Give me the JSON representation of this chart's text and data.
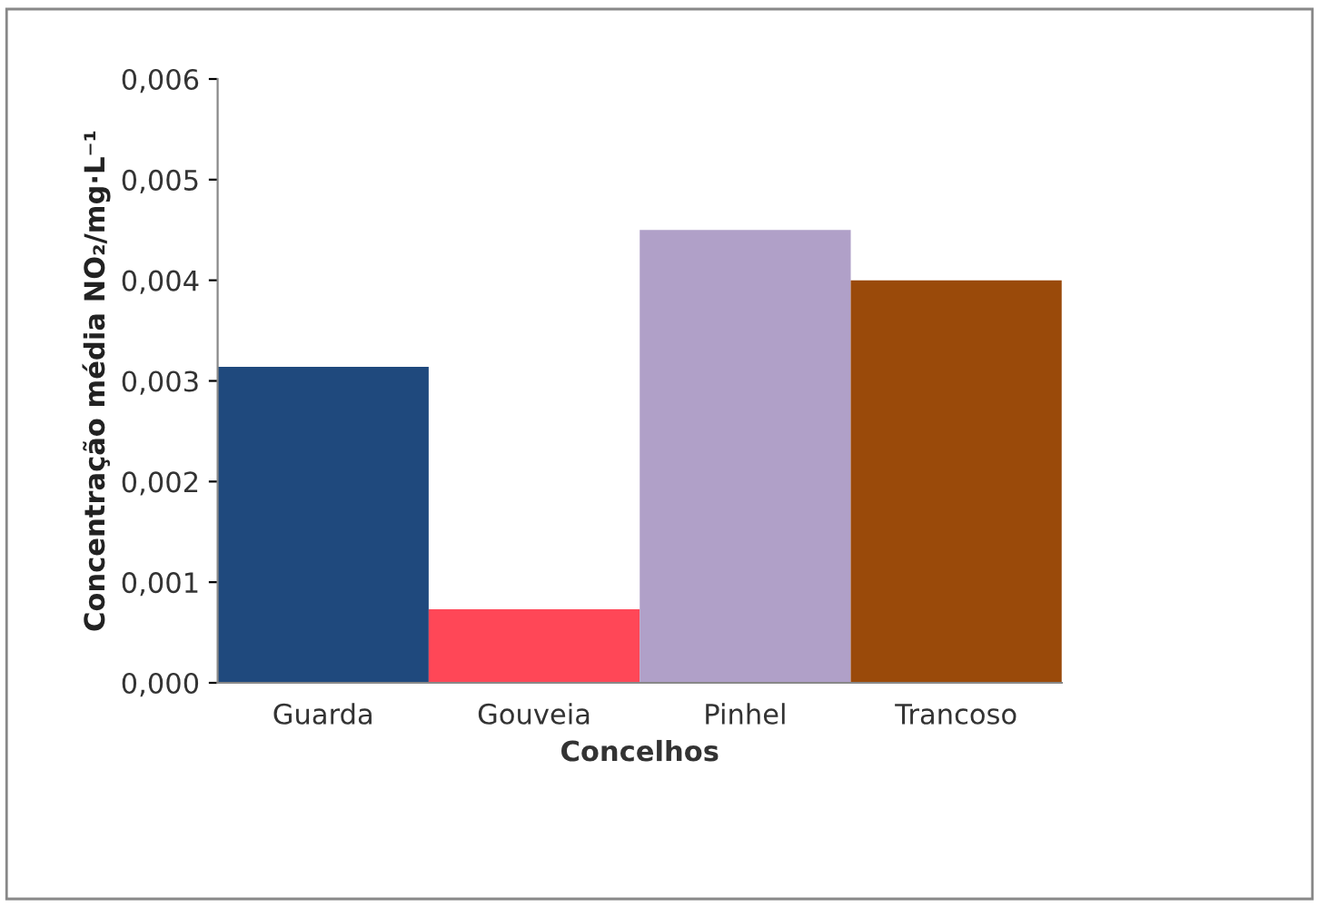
{
  "chart_data": {
    "type": "bar",
    "xlabel": "Concelhos",
    "ylabel": "Concentração média NO₂/mg·L⁻¹",
    "categories": [
      "Guarda",
      "Gouveia",
      "Pinhel",
      "Trancoso"
    ],
    "values": [
      0.00314,
      0.00073,
      0.0045,
      0.004
    ],
    "colors": [
      "#1f497d",
      "#ff4757",
      "#b0a0c8",
      "#9a4a0a"
    ],
    "ylim": [
      0,
      0.006
    ],
    "yticks": [
      {
        "value": 0,
        "label": "0,000"
      },
      {
        "value": 0.001,
        "label": "0,001"
      },
      {
        "value": 0.002,
        "label": "0,002"
      },
      {
        "value": 0.003,
        "label": "0,003"
      },
      {
        "value": 0.004,
        "label": "0,004"
      },
      {
        "value": 0.005,
        "label": "0,005"
      },
      {
        "value": 0.006,
        "label": "0,006"
      }
    ],
    "grid": false,
    "legend": false
  }
}
